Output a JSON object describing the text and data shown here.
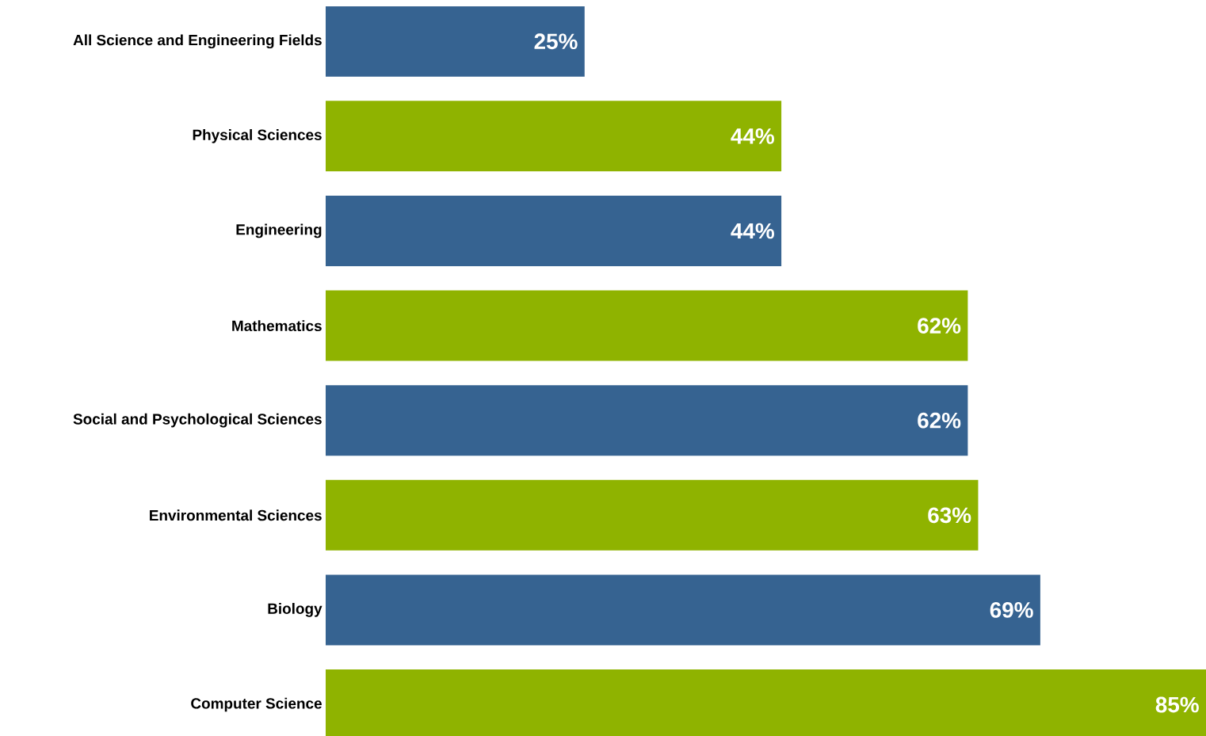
{
  "chart_data": {
    "type": "bar",
    "orientation": "horizontal",
    "categories": [
      "All Science and Engineering Fields",
      "Physical Sciences",
      "Engineering",
      "Mathematics",
      "Social and Psychological Sciences",
      "Environmental Sciences",
      "Biology",
      "Computer Science"
    ],
    "values": [
      25,
      44,
      44,
      62,
      62,
      63,
      69,
      85
    ],
    "value_labels": [
      "25%",
      "44%",
      "44%",
      "62%",
      "62%",
      "63%",
      "69%",
      "85%"
    ],
    "colors": [
      "#366391",
      "#8fb300",
      "#366391",
      "#8fb300",
      "#366391",
      "#8fb300",
      "#366391",
      "#8fb300"
    ]
  }
}
